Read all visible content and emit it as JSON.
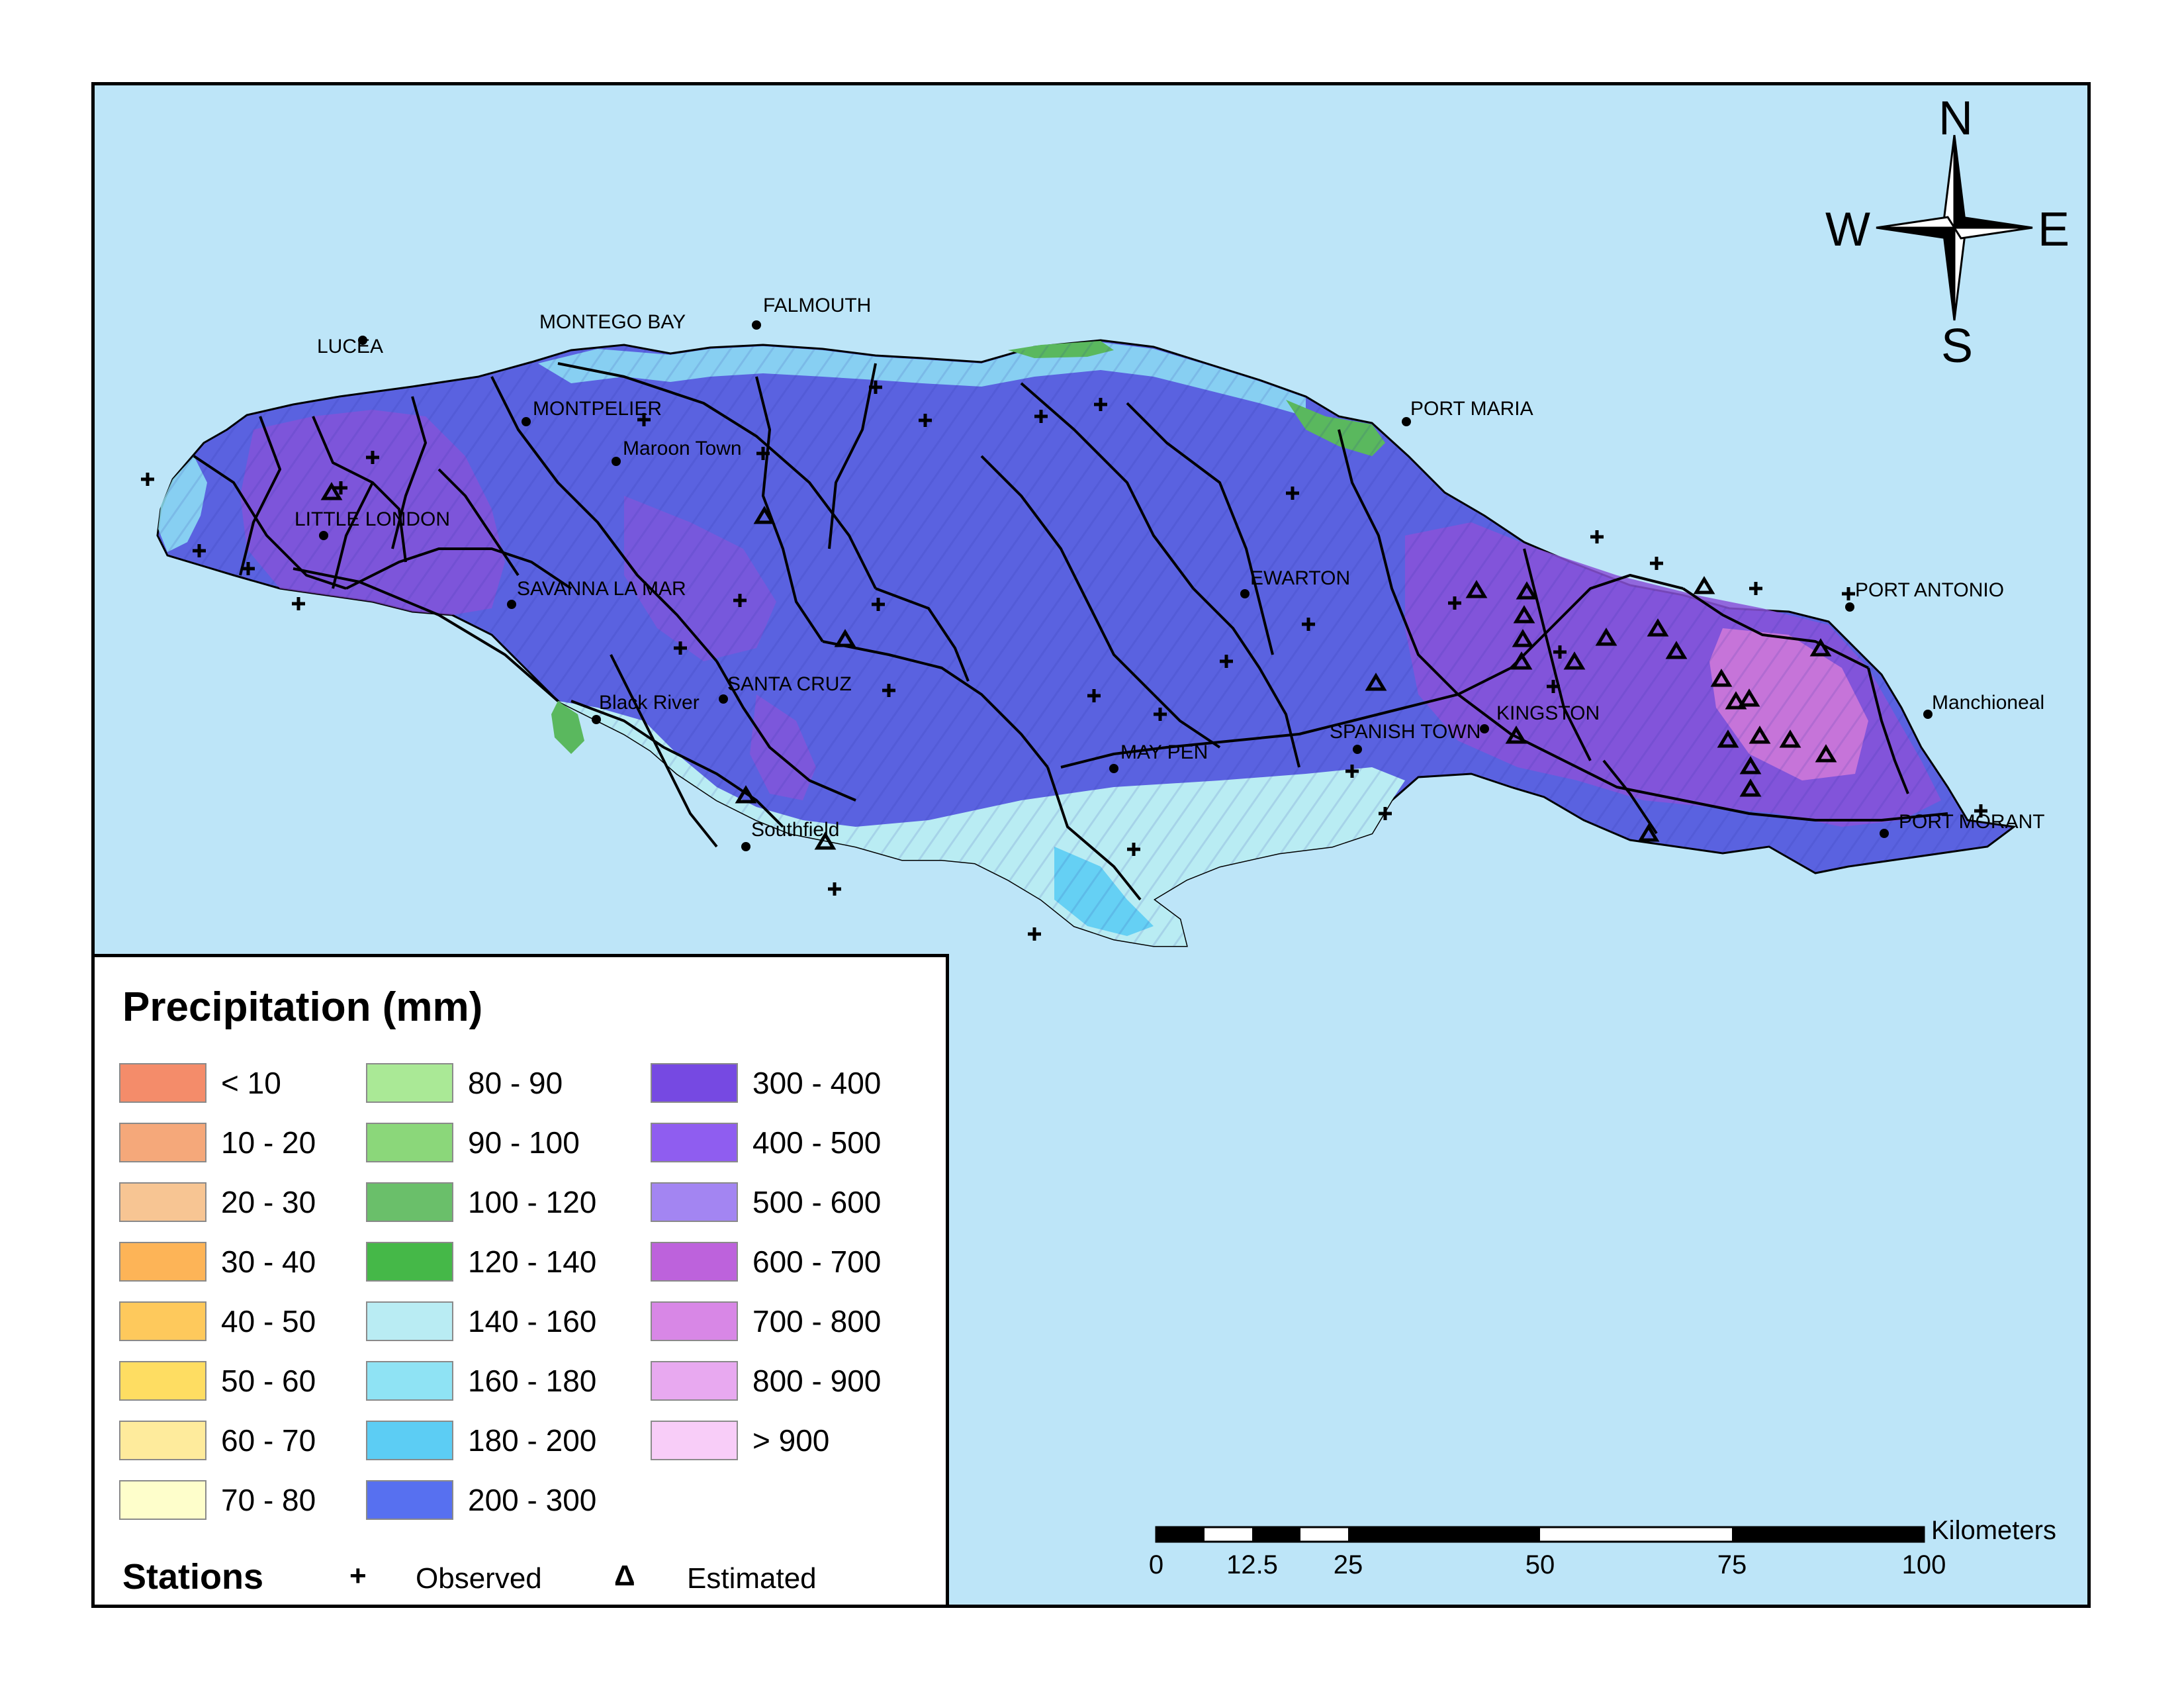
{
  "map": {
    "towns": [
      "LUCEA",
      "MONTEGO BAY",
      "FALMOUTH",
      "PORT MARIA",
      "MONTPELIER",
      "Maroon Town",
      "LITTLE LONDON",
      "SAVANNA LA MAR",
      "EWARTON",
      "PORT ANTONIO",
      "Black River",
      "SANTA CRUZ",
      "KINGSTON",
      "Manchioneal",
      "SPANISH TOWN",
      "MAY PEN",
      "Southfield",
      "PORT MORANT"
    ],
    "colors": {
      "sea": "#bde5f8",
      "land_200_300": "#5a62e0",
      "land_400_500": "#8a52d8",
      "land_800_900": "#d27ad8",
      "coast_140_160": "#b9ecf3",
      "coast_160_180": "#8fe3f4",
      "coast_100_120": "#5ab85e"
    }
  },
  "compass": {
    "n": "N",
    "s": "S",
    "e": "E",
    "w": "W"
  },
  "legend": {
    "title": "Precipitation (mm)",
    "items": [
      {
        "label": "< 10",
        "color": "#f48c6a"
      },
      {
        "label": "10 - 20",
        "color": "#f5a87a"
      },
      {
        "label": "20 - 30",
        "color": "#f7c593"
      },
      {
        "label": "30 - 40",
        "color": "#fdb457"
      },
      {
        "label": "40 - 50",
        "color": "#fec95c"
      },
      {
        "label": "50 - 60",
        "color": "#fedd62"
      },
      {
        "label": "60 - 70",
        "color": "#feeb9c"
      },
      {
        "label": "70 - 80",
        "color": "#fefecb"
      },
      {
        "label": "80 - 90",
        "color": "#aae996"
      },
      {
        "label": "90 - 100",
        "color": "#8bd77a"
      },
      {
        "label": "100 - 120",
        "color": "#6abf6a"
      },
      {
        "label": "120 - 140",
        "color": "#45b848"
      },
      {
        "label": "140 - 160",
        "color": "#b9ecf3"
      },
      {
        "label": "160 - 180",
        "color": "#8fe3f4"
      },
      {
        "label": "180 - 200",
        "color": "#5ccdf4"
      },
      {
        "label": "200 - 300",
        "color": "#5770f0"
      },
      {
        "label": "300 - 400",
        "color": "#7649e2"
      },
      {
        "label": "400 - 500",
        "color": "#8f5df0"
      },
      {
        "label": "500 - 600",
        "color": "#a385f2"
      },
      {
        "label": "600 - 700",
        "color": "#bd62dc"
      },
      {
        "label": "700 - 800",
        "color": "#d887e6"
      },
      {
        "label": "800 - 900",
        "color": "#e8a9f0"
      },
      {
        "label": "> 900",
        "color": "#f8cdf8"
      }
    ],
    "stations": {
      "title": "Stations",
      "observed_symbol": "+",
      "observed_label": "Observed",
      "estimated_symbol": "Δ",
      "estimated_label": "Estimated"
    }
  },
  "scale": {
    "unit": "Kilometers",
    "ticks": [
      "0",
      "12.5",
      "25",
      "50",
      "75",
      "100"
    ]
  }
}
